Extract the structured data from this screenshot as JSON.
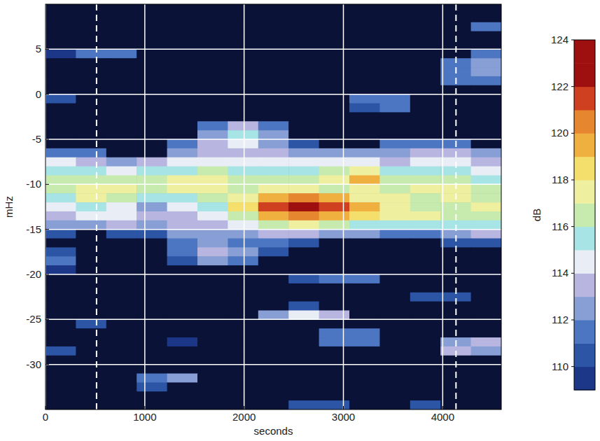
{
  "chart_data": {
    "type": "heatmap",
    "xlabel": "seconds",
    "ylabel": "mHz",
    "zlabel": "dB",
    "xlim": [
      0,
      4590
    ],
    "ylim": [
      -35,
      10
    ],
    "xticks": [
      0,
      1000,
      2000,
      3000,
      4000
    ],
    "yticks": [
      5,
      0,
      -5,
      -10,
      -15,
      -20,
      -25,
      -30
    ],
    "zlim": [
      109,
      124
    ],
    "zticks": [
      110,
      112,
      114,
      116,
      118,
      120,
      122,
      124
    ],
    "grid": true,
    "vlines": [
      514,
      4134
    ],
    "x": [
      153,
      459,
      765,
      1071,
      1377,
      1683,
      1989,
      2295,
      2601,
      2907,
      3213,
      3519,
      3825,
      4131,
      4437
    ],
    "y": [
      9.5,
      8.5,
      7.5,
      6.5,
      5.5,
      4.5,
      3.5,
      2.5,
      1.5,
      0.5,
      -0.5,
      -1.5,
      -2.5,
      -3.5,
      -4.5,
      -5.5,
      -6.5,
      -7.5,
      -8.5,
      -9.5,
      -10.5,
      -11.5,
      -12.5,
      -13.5,
      -14.5,
      -15.5,
      -16.5,
      -17.5,
      -18.5,
      -19.5,
      -20.5,
      -21.5,
      -22.5,
      -23.5,
      -24.5,
      -25.5,
      -26.5,
      -27.5,
      -28.5,
      -29.5,
      -30.5,
      -31.5,
      -32.5,
      -33.5,
      -34.5
    ],
    "cells": [
      [
        108,
        108,
        108,
        108,
        108,
        108,
        108,
        108,
        108,
        108,
        108,
        108,
        108,
        108,
        108
      ],
      [
        108,
        108,
        108,
        108,
        108,
        108,
        108,
        108,
        108,
        108,
        108,
        108,
        108,
        108,
        108
      ],
      [
        108,
        108,
        108,
        108,
        108,
        108,
        108,
        108,
        108,
        108,
        108,
        108,
        108,
        108,
        111
      ],
      [
        108,
        108,
        108,
        108,
        108,
        108,
        108,
        108,
        108,
        108,
        108,
        108,
        108,
        108,
        108
      ],
      [
        108,
        108,
        108,
        108,
        108,
        108,
        108,
        108,
        108,
        108,
        108,
        108,
        108,
        108,
        108
      ],
      [
        109,
        111,
        111,
        108,
        108,
        108,
        108,
        108,
        108,
        108,
        108,
        108,
        108,
        108,
        111
      ],
      [
        108,
        108,
        108,
        108,
        108,
        108,
        108,
        108,
        108,
        108,
        108,
        108,
        108,
        111,
        112
      ],
      [
        108,
        108,
        108,
        108,
        108,
        108,
        108,
        108,
        108,
        108,
        108,
        108,
        108,
        111,
        112
      ],
      [
        108,
        108,
        108,
        108,
        108,
        108,
        108,
        108,
        108,
        108,
        108,
        108,
        108,
        111,
        111
      ],
      [
        108,
        108,
        108,
        108,
        108,
        108,
        108,
        108,
        108,
        108,
        108,
        108,
        108,
        108,
        108
      ],
      [
        110,
        108,
        108,
        108,
        108,
        108,
        108,
        108,
        108,
        108,
        111,
        111,
        108,
        108,
        108
      ],
      [
        108,
        108,
        108,
        108,
        108,
        108,
        108,
        108,
        108,
        108,
        110,
        111,
        108,
        108,
        108
      ],
      [
        108,
        108,
        108,
        108,
        108,
        108,
        108,
        108,
        108,
        108,
        108,
        108,
        108,
        108,
        108
      ],
      [
        108,
        108,
        108,
        108,
        108,
        111,
        113,
        111,
        108,
        108,
        108,
        108,
        108,
        108,
        108
      ],
      [
        108,
        108,
        108,
        108,
        108,
        112,
        115,
        112,
        108,
        108,
        108,
        108,
        108,
        108,
        108
      ],
      [
        108,
        108,
        108,
        108,
        111,
        113,
        114,
        112,
        110,
        108,
        108,
        111,
        111,
        111,
        108
      ],
      [
        111,
        111,
        108,
        108,
        112,
        113,
        113,
        113,
        112,
        112,
        112,
        112,
        113,
        113,
        112
      ],
      [
        114,
        113,
        112,
        113,
        114,
        114,
        114,
        114,
        114,
        114,
        114,
        113,
        114,
        114,
        113
      ],
      [
        115,
        115,
        114,
        115,
        115,
        116,
        115,
        115,
        115,
        116,
        117,
        115,
        115,
        115,
        114
      ],
      [
        116,
        116,
        116,
        116,
        117,
        117,
        116,
        116,
        116,
        117,
        119,
        116,
        116,
        116,
        115
      ],
      [
        116,
        117,
        117,
        116,
        117,
        117,
        116,
        117,
        117,
        116,
        117,
        116,
        117,
        117,
        116
      ],
      [
        115,
        117,
        116,
        115,
        115,
        116,
        117,
        119,
        120,
        119,
        117,
        117,
        116,
        117,
        116
      ],
      [
        114,
        115,
        114,
        112,
        114,
        115,
        118,
        121,
        123,
        121,
        119,
        117,
        116,
        116,
        117
      ],
      [
        113,
        114,
        114,
        113,
        113,
        114,
        116,
        119,
        120,
        119,
        118,
        117,
        117,
        116,
        116
      ],
      [
        112,
        112,
        113,
        112,
        113,
        113,
        114,
        116,
        117,
        116,
        115,
        115,
        115,
        115,
        115
      ],
      [
        110,
        108,
        110,
        110,
        112,
        112,
        112,
        113,
        113,
        112,
        112,
        111,
        111,
        112,
        113
      ],
      [
        108,
        108,
        108,
        108,
        111,
        112,
        111,
        111,
        110,
        108,
        108,
        108,
        108,
        110,
        110
      ],
      [
        110,
        108,
        108,
        108,
        111,
        113,
        112,
        110,
        108,
        108,
        108,
        108,
        108,
        108,
        108
      ],
      [
        111,
        108,
        108,
        108,
        110,
        112,
        111,
        108,
        108,
        108,
        108,
        108,
        108,
        108,
        108
      ],
      [
        109,
        108,
        108,
        108,
        108,
        108,
        108,
        108,
        108,
        108,
        108,
        108,
        108,
        108,
        108
      ],
      [
        108,
        108,
        108,
        108,
        108,
        108,
        108,
        108,
        110,
        111,
        111,
        108,
        108,
        108,
        108
      ],
      [
        108,
        108,
        108,
        108,
        108,
        108,
        108,
        108,
        108,
        108,
        108,
        108,
        108,
        108,
        108
      ],
      [
        108,
        108,
        108,
        108,
        108,
        108,
        108,
        108,
        108,
        108,
        108,
        108,
        110,
        110,
        108
      ],
      [
        108,
        108,
        108,
        108,
        108,
        108,
        108,
        108,
        110,
        108,
        108,
        108,
        108,
        108,
        108
      ],
      [
        108,
        108,
        108,
        108,
        108,
        108,
        108,
        112,
        114,
        113,
        108,
        108,
        108,
        108,
        108
      ],
      [
        108,
        110,
        108,
        108,
        108,
        108,
        108,
        108,
        108,
        108,
        108,
        108,
        108,
        108,
        108
      ],
      [
        108,
        108,
        108,
        108,
        108,
        108,
        108,
        108,
        108,
        111,
        111,
        108,
        108,
        108,
        108
      ],
      [
        108,
        108,
        108,
        108,
        109,
        108,
        108,
        108,
        108,
        111,
        111,
        108,
        108,
        112,
        113
      ],
      [
        110,
        108,
        108,
        108,
        108,
        108,
        108,
        108,
        108,
        108,
        108,
        108,
        108,
        113,
        112
      ],
      [
        108,
        108,
        108,
        108,
        108,
        108,
        108,
        108,
        108,
        108,
        108,
        108,
        108,
        108,
        108
      ],
      [
        108,
        108,
        108,
        108,
        108,
        108,
        108,
        108,
        108,
        108,
        108,
        108,
        108,
        108,
        108
      ],
      [
        108,
        108,
        108,
        111,
        112,
        108,
        108,
        108,
        108,
        108,
        108,
        108,
        108,
        108,
        108
      ],
      [
        108,
        108,
        108,
        110,
        108,
        108,
        108,
        108,
        108,
        108,
        108,
        108,
        108,
        108,
        108
      ],
      [
        108,
        108,
        108,
        108,
        108,
        108,
        108,
        108,
        108,
        108,
        108,
        108,
        108,
        108,
        108
      ],
      [
        108,
        108,
        108,
        108,
        108,
        108,
        108,
        108,
        110,
        110,
        108,
        108,
        110,
        108,
        108
      ]
    ]
  }
}
